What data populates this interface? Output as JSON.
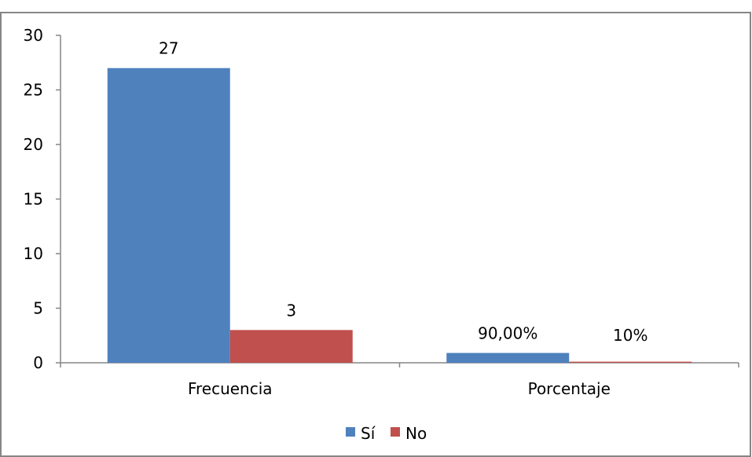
{
  "chart_data": {
    "type": "bar",
    "categories": [
      "Frecuencia",
      "Porcentaje"
    ],
    "series": [
      {
        "name": "Sí",
        "color": "#4F81BD",
        "values": [
          27,
          0.9
        ],
        "labels": [
          "27",
          "90,00%"
        ]
      },
      {
        "name": "No",
        "color": "#C0504D",
        "values": [
          3,
          0.1
        ],
        "labels": [
          "3",
          "10%"
        ]
      }
    ],
    "yticks": [
      "0",
      "5",
      "10",
      "15",
      "20",
      "25",
      "30"
    ],
    "ylim": [
      0,
      30
    ],
    "grid": false,
    "legend": "bottom",
    "title": "",
    "xlabel": "",
    "ylabel": ""
  }
}
